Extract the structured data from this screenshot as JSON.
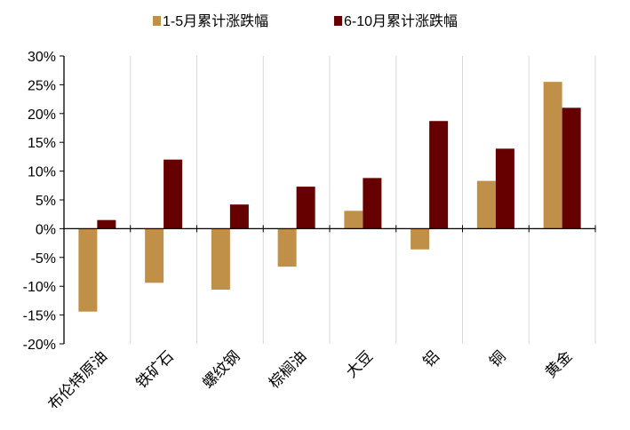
{
  "chart_data": {
    "type": "bar",
    "title": "",
    "xlabel": "",
    "ylabel": "",
    "categories": [
      "布伦特原油",
      "铁矿石",
      "螺纹钢",
      "棕榈油",
      "大豆",
      "铝",
      "铜",
      "黄金"
    ],
    "series": [
      {
        "name": "1-5月累计涨跌幅",
        "color": "#C09048",
        "values": [
          -14.4,
          -9.4,
          -10.6,
          -6.6,
          3.1,
          -3.6,
          8.3,
          25.5
        ]
      },
      {
        "name": "6-10月累计涨跌幅",
        "color": "#660000",
        "values": [
          1.5,
          12.0,
          4.2,
          7.3,
          8.8,
          18.7,
          13.9,
          21.0
        ]
      }
    ],
    "ylim": [
      -20,
      30
    ],
    "yticks": [
      30,
      25,
      20,
      15,
      10,
      5,
      0,
      -5,
      -10,
      -15,
      -20
    ],
    "ytick_labels": [
      "30%",
      "25%",
      "20%",
      "15%",
      "10%",
      "5%",
      "0%",
      "-5%",
      "-10%",
      "-15%",
      "-20%"
    ],
    "grid": "vertical",
    "legend": "top"
  }
}
